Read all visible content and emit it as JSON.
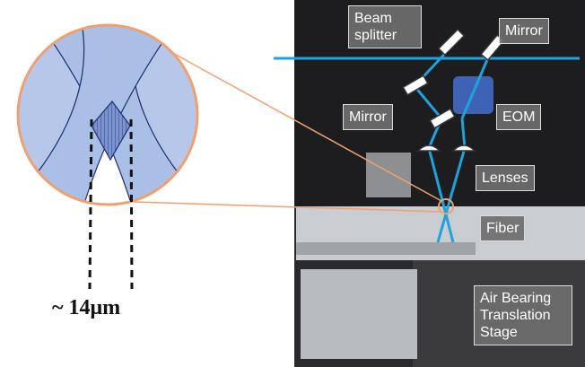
{
  "labels": {
    "beam_splitter": "Beam splitter",
    "mirror_top": "Mirror",
    "mirror_left": "Mirror",
    "eom": "EOM",
    "lenses": "Lenses",
    "fiber": "Fiber",
    "stage": "Air Bearing Translation Stage"
  },
  "scale": "~ 14μm"
}
